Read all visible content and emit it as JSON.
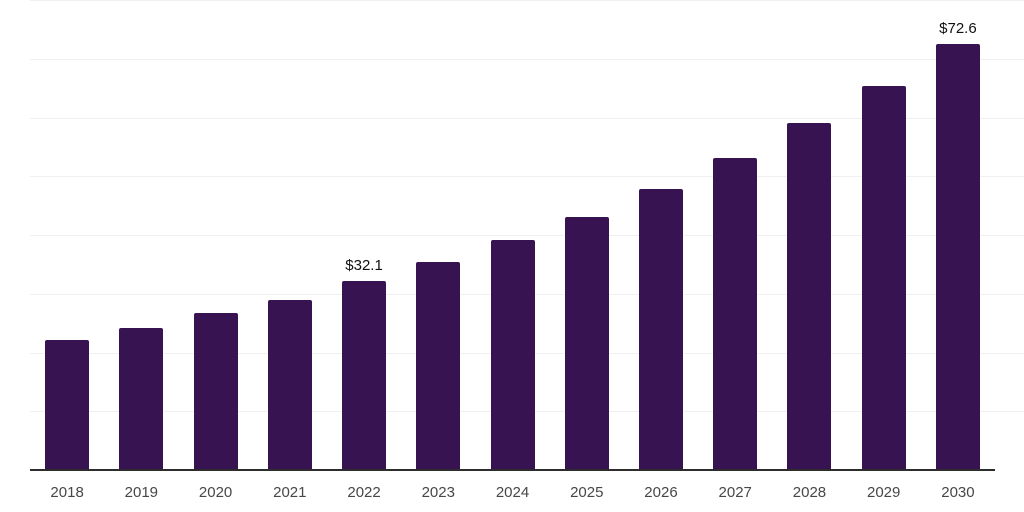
{
  "chart_data": {
    "type": "bar",
    "categories": [
      "2018",
      "2019",
      "2020",
      "2021",
      "2022",
      "2023",
      "2024",
      "2025",
      "2026",
      "2027",
      "2028",
      "2029",
      "2030"
    ],
    "values": [
      22.1,
      24.1,
      26.8,
      29.0,
      32.1,
      35.4,
      39.1,
      43.1,
      47.9,
      53.1,
      59.0,
      65.4,
      72.6
    ],
    "annotations": [
      {
        "category": "2022",
        "text": "$32.1"
      },
      {
        "category": "2030",
        "text": "$72.6"
      }
    ],
    "title": "",
    "xlabel": "",
    "ylabel": "",
    "ylim": [
      0,
      80
    ],
    "gridline_step": 10,
    "grid": true,
    "legend": "none",
    "bar_color": "#371351",
    "axis_line_color": "#2d2d2d",
    "gridline_color": "#f0f0f0",
    "label_color": "#111111",
    "tick_label_color": "#474747"
  }
}
